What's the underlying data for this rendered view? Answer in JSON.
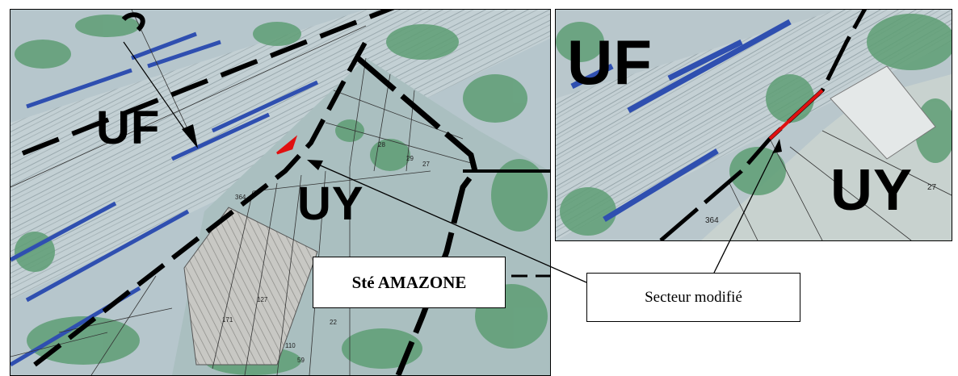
{
  "left_map": {
    "zone_uf": "UF",
    "zone_uy": "UY",
    "lot_numbers": [
      "364",
      "127",
      "171",
      "110",
      "59",
      "22",
      "27",
      "28",
      "29"
    ]
  },
  "right_map": {
    "zone_uf": "UF",
    "zone_uy": "UY",
    "lot_numbers": [
      "364",
      "27"
    ]
  },
  "callouts": {
    "company": "Sté AMAZONE",
    "modified_sector": "Secteur modifié"
  },
  "colors": {
    "zone_boundary": "#000000",
    "modified_boundary": "#e01010",
    "rail_cars": "#2f4fb0",
    "vegetation": "#5e9e74"
  }
}
